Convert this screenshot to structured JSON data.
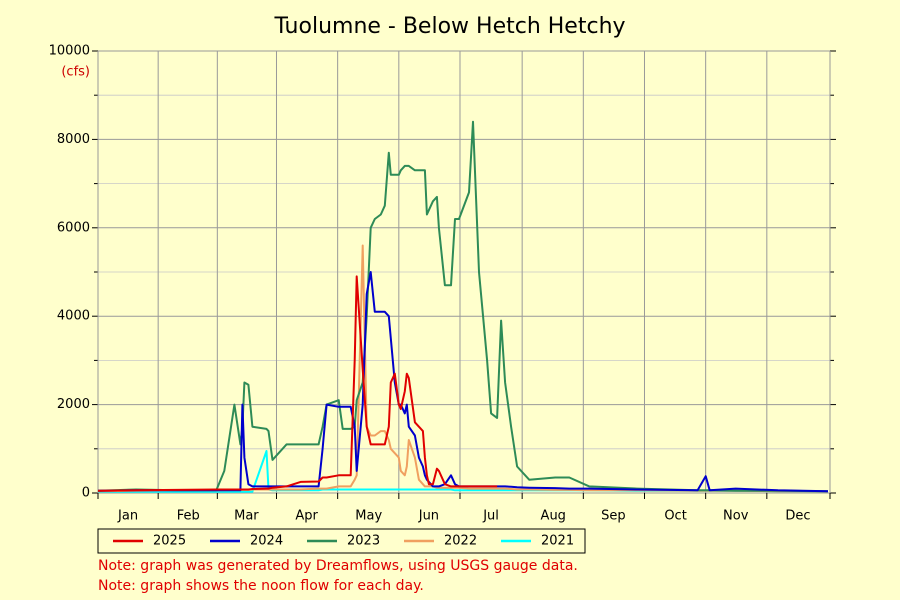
{
  "chart_data": {
    "type": "line",
    "title": "Tuolumne - Below Hetch Hetchy",
    "y_label": "(cfs)",
    "x": [
      1,
      20,
      40,
      60,
      64,
      69,
      72,
      73,
      74,
      76,
      78,
      85,
      86,
      88,
      95,
      102,
      111,
      113,
      115,
      121,
      123,
      127,
      129,
      130,
      133,
      135,
      137,
      139,
      142,
      144,
      146,
      147,
      149,
      151,
      152,
      154,
      155,
      156,
      159,
      161,
      163,
      164,
      165,
      166,
      168,
      170,
      171,
      174,
      177,
      179,
      181,
      186,
      188,
      191,
      195,
      197,
      200,
      202,
      204,
      207,
      210,
      216,
      229,
      236,
      246,
      270,
      300,
      304,
      306,
      319,
      340,
      365
    ],
    "xlim": [
      1,
      366
    ],
    "xticks": [
      {
        "value": 16,
        "label": "Jan"
      },
      {
        "value": 46,
        "label": "Feb"
      },
      {
        "value": 75,
        "label": "Mar"
      },
      {
        "value": 105,
        "label": "Apr"
      },
      {
        "value": 136,
        "label": "May"
      },
      {
        "value": 166,
        "label": "Jun"
      },
      {
        "value": 197,
        "label": "Jul"
      },
      {
        "value": 228,
        "label": "Aug"
      },
      {
        "value": 258,
        "label": "Sep"
      },
      {
        "value": 289,
        "label": "Oct"
      },
      {
        "value": 319,
        "label": "Nov"
      },
      {
        "value": 350,
        "label": "Dec"
      }
    ],
    "ylim": [
      0,
      10000
    ],
    "yticks": [
      0,
      2000,
      4000,
      6000,
      8000,
      10000
    ],
    "grid": true,
    "series": [
      {
        "name": "2025",
        "color": "#e00000",
        "values": [
          50,
          60,
          70,
          80,
          80,
          80,
          80,
          80,
          80,
          80,
          90,
          100,
          100,
          120,
          150,
          250,
          260,
          350,
          350,
          400,
          400,
          400,
          3000,
          4900,
          2800,
          1500,
          1100,
          1100,
          1100,
          1100,
          1500,
          2500,
          2700,
          2000,
          1900,
          2300,
          2700,
          2600,
          1600,
          1500,
          1400,
          800,
          400,
          200,
          200,
          550,
          500,
          200,
          150,
          150,
          150,
          150,
          150,
          150,
          150,
          150,
          150,
          null,
          null,
          null,
          null,
          null,
          null,
          null,
          null,
          null,
          null,
          null,
          null,
          null,
          null,
          null
        ]
      },
      {
        "name": "2024",
        "color": "#0000cc",
        "values": [
          50,
          60,
          60,
          60,
          60,
          60,
          60,
          2000,
          800,
          200,
          150,
          150,
          150,
          150,
          150,
          150,
          150,
          1000,
          2000,
          1950,
          1950,
          1950,
          1500,
          500,
          2000,
          4500,
          5000,
          4100,
          4100,
          4100,
          4000,
          3500,
          2500,
          2000,
          2000,
          1800,
          2000,
          1500,
          1300,
          800,
          600,
          400,
          300,
          250,
          150,
          150,
          150,
          200,
          400,
          200,
          150,
          150,
          150,
          150,
          150,
          150,
          150,
          150,
          150,
          140,
          130,
          120,
          110,
          100,
          100,
          80,
          60,
          380,
          60,
          100,
          60,
          40
        ]
      },
      {
        "name": "2023",
        "color": "#2e8b57",
        "values": [
          50,
          80,
          60,
          60,
          500,
          2000,
          1100,
          1500,
          2500,
          2450,
          1500,
          1450,
          1400,
          750,
          1100,
          1100,
          1100,
          1500,
          2000,
          2100,
          1450,
          1450,
          1500,
          2100,
          2500,
          4000,
          6000,
          6200,
          6300,
          6500,
          7700,
          7200,
          7200,
          7200,
          7300,
          7400,
          7400,
          7400,
          7300,
          7300,
          7300,
          7300,
          6300,
          6400,
          6600,
          6700,
          6000,
          4700,
          4700,
          6200,
          6200,
          6800,
          8400,
          5000,
          3000,
          1800,
          1700,
          3900,
          2500,
          1500,
          600,
          300,
          350,
          350,
          150,
          100,
          60,
          60,
          60,
          50,
          50,
          40
        ]
      },
      {
        "name": "2022",
        "color": "#f0a060",
        "values": [
          40,
          50,
          60,
          60,
          60,
          70,
          70,
          70,
          70,
          70,
          80,
          80,
          80,
          80,
          80,
          80,
          100,
          100,
          100,
          150,
          150,
          150,
          300,
          400,
          5600,
          1500,
          1300,
          1300,
          1400,
          1400,
          1200,
          1000,
          900,
          800,
          500,
          400,
          600,
          1200,
          800,
          300,
          200,
          150,
          150,
          150,
          150,
          120,
          120,
          120,
          120,
          120,
          120,
          100,
          100,
          100,
          100,
          100,
          100,
          100,
          100,
          90,
          80,
          80,
          70,
          70,
          60,
          60,
          50,
          50,
          50,
          50,
          40,
          40
        ]
      },
      {
        "name": "2021",
        "color": "#00ffff",
        "values": [
          30,
          30,
          30,
          30,
          30,
          30,
          30,
          30,
          30,
          30,
          30,
          950,
          80,
          60,
          60,
          60,
          60,
          80,
          80,
          80,
          80,
          80,
          80,
          80,
          80,
          80,
          80,
          80,
          80,
          80,
          80,
          80,
          80,
          80,
          80,
          80,
          80,
          80,
          80,
          80,
          80,
          80,
          80,
          80,
          80,
          80,
          80,
          80,
          80,
          60,
          60,
          60,
          60,
          60,
          60,
          60,
          60,
          60,
          60,
          60,
          60,
          60,
          60,
          60,
          60,
          50,
          50,
          50,
          50,
          50,
          40,
          40
        ]
      }
    ],
    "notes": [
      "Note: graph was generated by Dreamflows, using USGS gauge data.",
      "Note: graph shows the noon flow for each day."
    ]
  }
}
